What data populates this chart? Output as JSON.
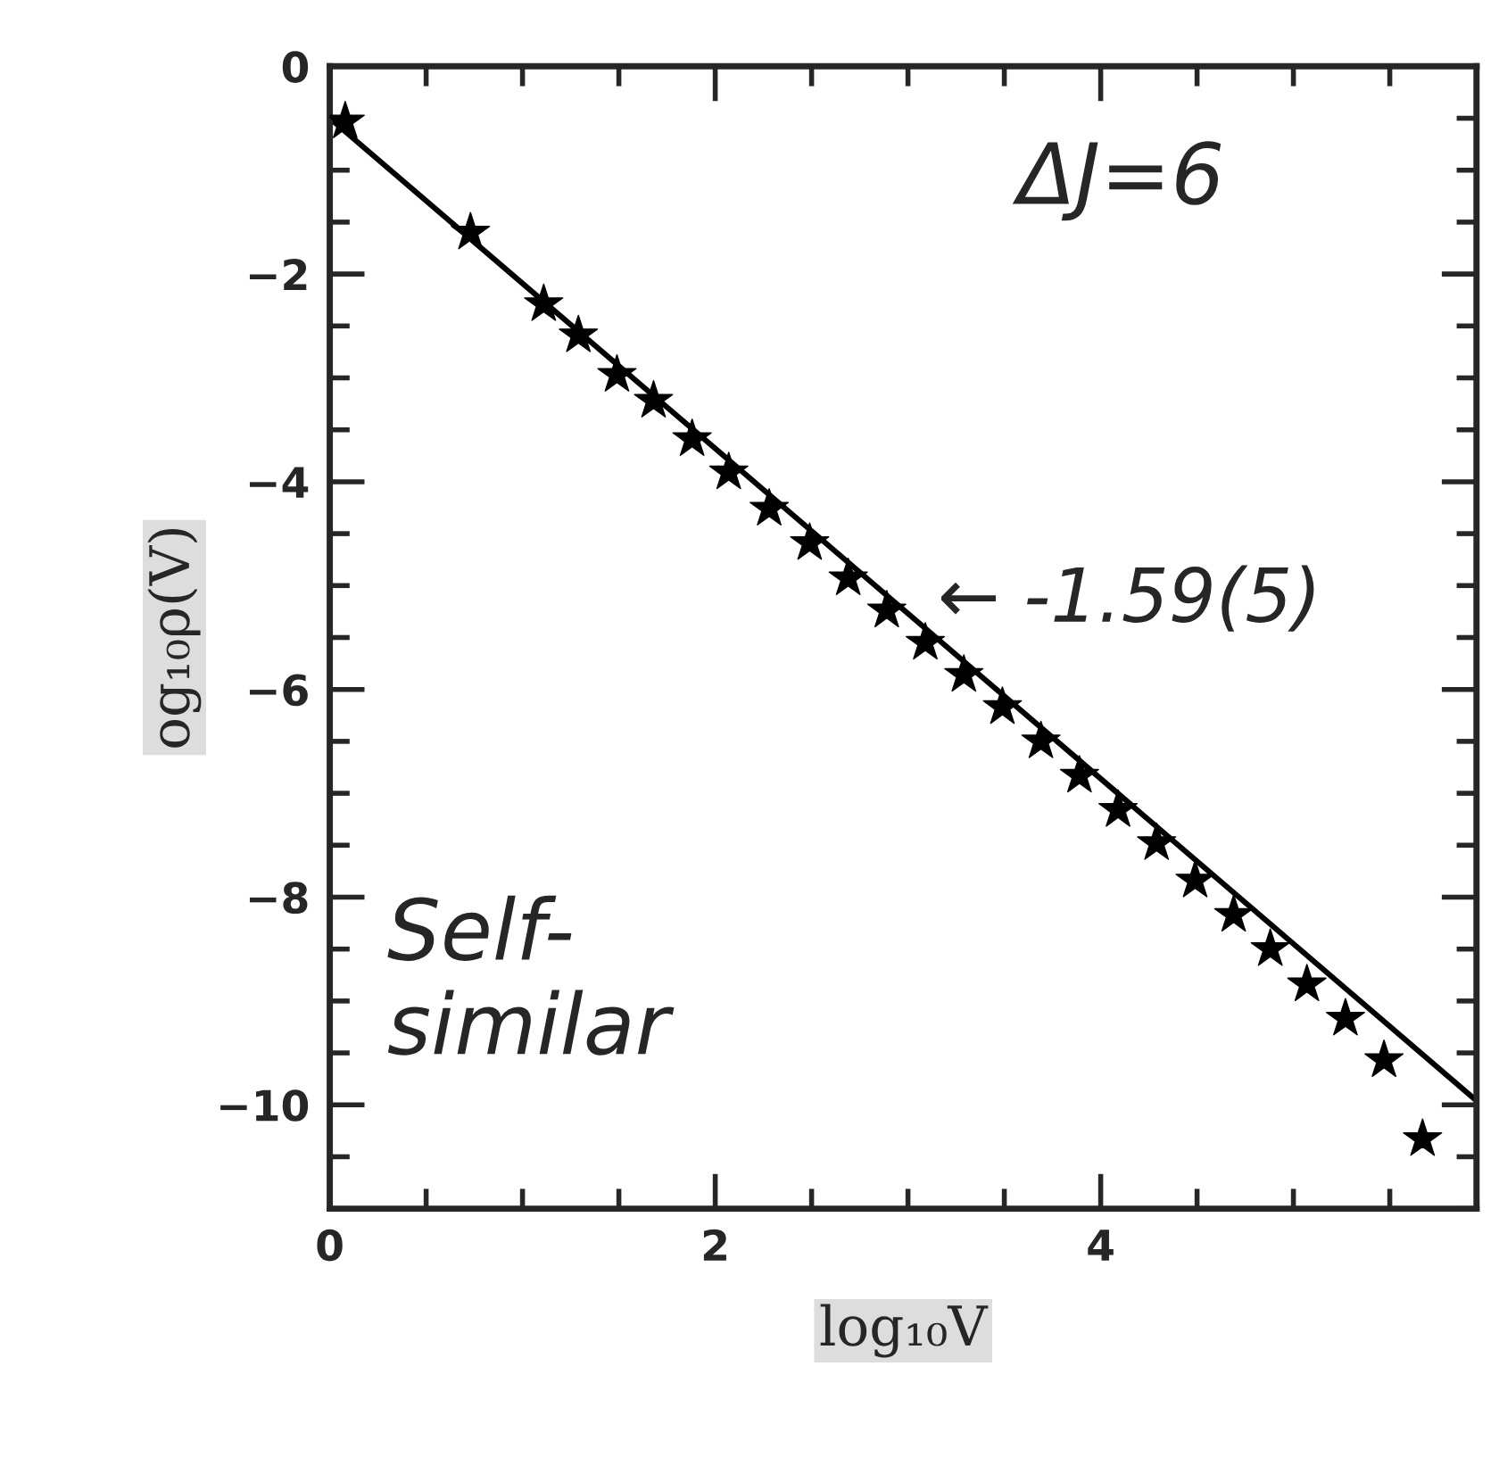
{
  "chart_data": {
    "type": "scatter",
    "xlabel": "log₁₀V",
    "ylabel": "og₁₀ρ(V)",
    "xlim": [
      0,
      5.95
    ],
    "ylim": [
      -11,
      0
    ],
    "xticks": [
      0,
      2,
      4
    ],
    "yticks": [
      0,
      -2,
      -4,
      -6,
      -8,
      -10
    ],
    "grid": false,
    "series": [
      {
        "marker": "star",
        "color": "#000000",
        "x": [
          0.08,
          0.73,
          1.11,
          1.29,
          1.49,
          1.68,
          1.88,
          2.07,
          2.28,
          2.49,
          2.69,
          2.89,
          3.09,
          3.29,
          3.49,
          3.69,
          3.89,
          4.09,
          4.29,
          4.49,
          4.69,
          4.88,
          5.07,
          5.27,
          5.47,
          5.67
        ],
        "values": [
          -0.53,
          -1.6,
          -2.29,
          -2.59,
          -2.97,
          -3.22,
          -3.59,
          -3.91,
          -4.26,
          -4.59,
          -4.93,
          -5.24,
          -5.55,
          -5.86,
          -6.17,
          -6.5,
          -6.83,
          -7.16,
          -7.48,
          -7.84,
          -8.17,
          -8.5,
          -8.84,
          -9.17,
          -9.57,
          -10.33
        ]
      },
      {
        "type": "line",
        "line_style": "solid",
        "color": "#000000",
        "x": [
          0,
          5.95
        ],
        "values": [
          -0.5,
          -9.96
        ]
      }
    ],
    "annotations": [
      "ΔJ=6",
      {
        "text": "← -1.59(5)",
        "x": 3.0,
        "y": -5.15
      },
      "Self-\nsimilar"
    ]
  }
}
